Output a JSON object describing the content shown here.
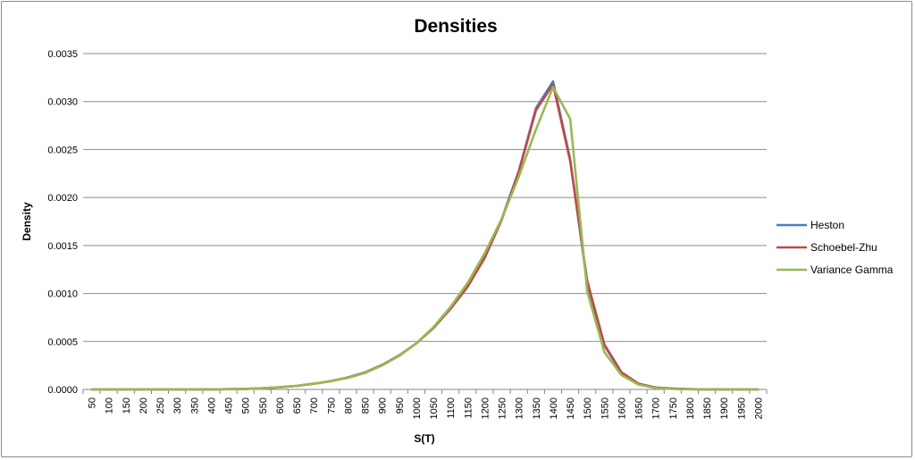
{
  "chart_data": {
    "type": "line",
    "title": "Densities",
    "xlabel": "S(T)",
    "ylabel": "Density",
    "ylim": [
      0,
      0.0035
    ],
    "yticks": [
      "0.0000",
      "0.0005",
      "0.0010",
      "0.0015",
      "0.0020",
      "0.0025",
      "0.0030",
      "0.0035"
    ],
    "grid": "horizontal",
    "legend": "right",
    "categories": [
      "50",
      "100",
      "150",
      "200",
      "250",
      "300",
      "350",
      "400",
      "450",
      "500",
      "550",
      "600",
      "650",
      "700",
      "750",
      "800",
      "850",
      "900",
      "950",
      "1000",
      "1050",
      "1100",
      "1150",
      "1200",
      "1250",
      "1300",
      "1350",
      "1400",
      "1450",
      "1500",
      "1550",
      "1600",
      "1650",
      "1700",
      "1750",
      "1800",
      "1850",
      "1900",
      "1950",
      "2000"
    ],
    "series": [
      {
        "name": "Heston",
        "color": "#4a7ebb",
        "values": [
          0,
          0,
          0,
          0,
          0,
          0,
          0,
          1e-06,
          3e-06,
          6e-06,
          1.2e-05,
          2.2e-05,
          3.7e-05,
          6e-05,
          8.7e-05,
          0.000125,
          0.000177,
          0.000255,
          0.000355,
          0.00048,
          0.00064,
          0.00085,
          0.00108,
          0.00138,
          0.00178,
          0.00228,
          0.00293,
          0.00321,
          0.0024,
          0.0011,
          0.00046,
          0.00017,
          6e-05,
          2e-05,
          8e-06,
          3e-06,
          1e-06,
          0,
          0,
          0
        ]
      },
      {
        "name": "Schoebel-Zhu",
        "color": "#be4b48",
        "values": [
          0,
          0,
          0,
          0,
          0,
          0,
          0,
          1e-06,
          3e-06,
          6e-06,
          1.2e-05,
          2.2e-05,
          3.7e-05,
          6e-05,
          8.7e-05,
          0.000125,
          0.000177,
          0.000255,
          0.000355,
          0.00048,
          0.00064,
          0.00084,
          0.00107,
          0.00137,
          0.00177,
          0.00227,
          0.00291,
          0.00318,
          0.00238,
          0.00113,
          0.00047,
          0.00018,
          6e-05,
          2e-05,
          8e-06,
          3e-06,
          1e-06,
          0,
          0,
          0
        ]
      },
      {
        "name": "Variance Gamma",
        "color": "#98b954",
        "values": [
          0,
          0,
          0,
          0,
          0,
          0,
          0,
          1e-06,
          3e-06,
          6e-06,
          1.2e-05,
          2.2e-05,
          3.7e-05,
          6e-05,
          8.7e-05,
          0.00012,
          0.000172,
          0.00025,
          0.00035,
          0.00048,
          0.00065,
          0.00086,
          0.00111,
          0.00142,
          0.00178,
          0.00222,
          0.00271,
          0.00315,
          0.00282,
          0.00102,
          0.00039,
          0.00015,
          5e-05,
          1.5e-05,
          5e-06,
          2e-06,
          1e-06,
          0,
          0,
          0
        ]
      }
    ]
  }
}
